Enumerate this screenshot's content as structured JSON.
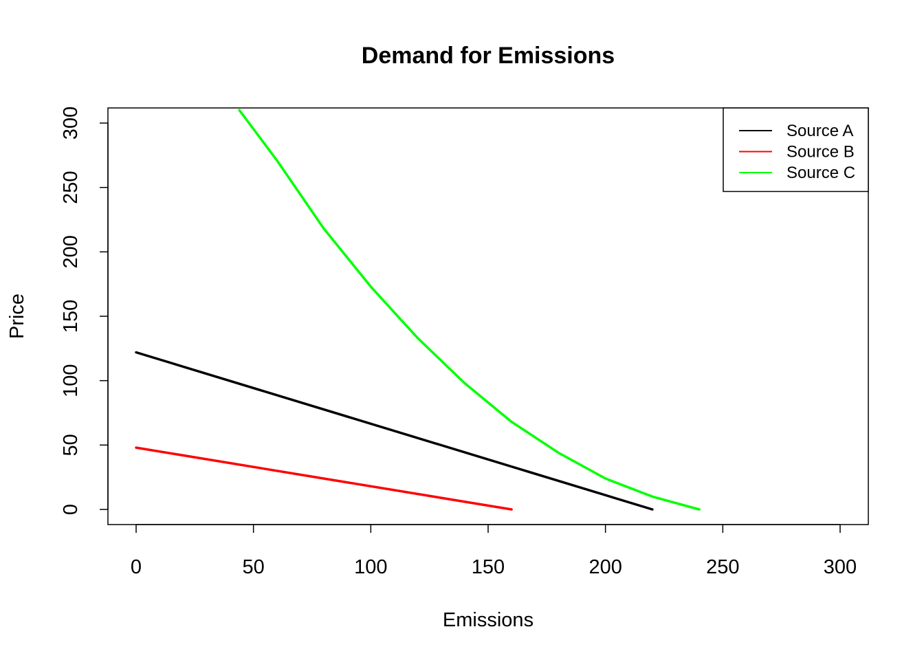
{
  "chart_data": {
    "type": "line",
    "title": "Demand for Emissions",
    "xlabel": "Emissions",
    "ylabel": "Price",
    "xlim": [
      0,
      300
    ],
    "ylim": [
      0,
      300
    ],
    "x_ticks": [
      0,
      50,
      100,
      150,
      200,
      250,
      300
    ],
    "y_ticks": [
      0,
      50,
      100,
      150,
      200,
      250,
      300
    ],
    "legend_position": "top-right",
    "grid": false,
    "series": [
      {
        "name": "Source A",
        "color": "#000000",
        "x": [
          0,
          220
        ],
        "y": [
          122,
          0
        ]
      },
      {
        "name": "Source B",
        "color": "#ff0000",
        "x": [
          0,
          160
        ],
        "y": [
          48,
          0
        ]
      },
      {
        "name": "Source C",
        "color": "#00ff00",
        "x": [
          44,
          60,
          80,
          100,
          120,
          140,
          160,
          180,
          200,
          220,
          240
        ],
        "y": [
          310,
          271,
          218,
          173,
          133,
          98,
          68,
          44,
          24,
          10,
          0
        ]
      }
    ]
  }
}
